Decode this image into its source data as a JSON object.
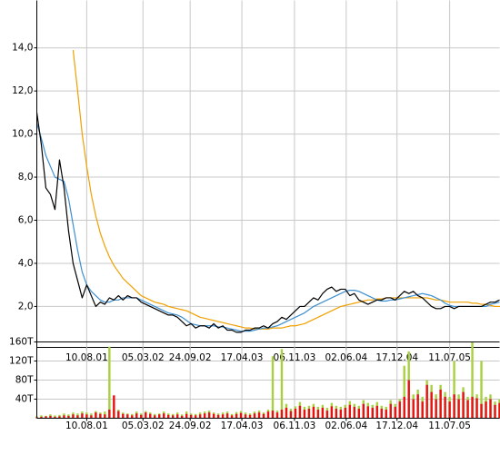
{
  "chart_data": [
    {
      "type": "line",
      "xlim": [
        0,
        102
      ],
      "xticks": [
        {
          "value": 11,
          "label": "10.08.01"
        },
        {
          "value": 23.4,
          "label": "05.03.02"
        },
        {
          "value": 33.8,
          "label": "24.09.02"
        },
        {
          "value": 45.2,
          "label": "17.04.03"
        },
        {
          "value": 56.8,
          "label": "06.11.03"
        },
        {
          "value": 68.2,
          "label": "02.06.04"
        },
        {
          "value": 79.4,
          "label": "17.12.04"
        },
        {
          "value": 91,
          "label": "11.07.05"
        }
      ],
      "ylim": [
        0.1,
        16.2
      ],
      "yticks": [
        {
          "value": 2,
          "label": "2,0"
        },
        {
          "value": 4,
          "label": "4,0"
        },
        {
          "value": 6,
          "label": "6,0"
        },
        {
          "value": 8,
          "label": "8,0"
        },
        {
          "value": 10,
          "label": "10,0"
        },
        {
          "value": 12,
          "label": "12,0"
        },
        {
          "value": 14,
          "label": "14,0"
        }
      ],
      "grid": true,
      "series": [
        {
          "color": "#f0a000",
          "values": [
            null,
            null,
            null,
            null,
            null,
            null,
            null,
            null,
            13.9,
            12,
            10,
            8.5,
            7.2,
            6.2,
            5.4,
            4.8,
            4.3,
            3.9,
            3.6,
            3.3,
            3.1,
            2.9,
            2.7,
            2.5,
            2.4,
            2.3,
            2.2,
            2.15,
            2.1,
            2.0,
            1.95,
            1.9,
            1.85,
            1.8,
            1.7,
            1.6,
            1.5,
            1.45,
            1.4,
            1.35,
            1.3,
            1.25,
            1.2,
            1.15,
            1.1,
            1.05,
            1.0,
            1.0,
            0.95,
            0.95,
            0.95,
            0.95,
            1.0,
            1.0,
            1.0,
            1.05,
            1.1,
            1.1,
            1.15,
            1.2,
            1.3,
            1.4,
            1.5,
            1.6,
            1.7,
            1.8,
            1.9,
            2.0,
            2.05,
            2.1,
            2.15,
            2.2,
            2.25,
            2.3,
            2.3,
            2.35,
            2.35,
            2.4,
            2.4,
            2.4,
            2.4,
            2.4,
            2.4,
            2.4,
            2.4,
            2.4,
            2.4,
            2.35,
            2.3,
            2.3,
            2.25,
            2.2,
            2.2,
            2.2,
            2.2,
            2.2,
            2.15,
            2.15,
            2.1,
            2.1,
            2.05,
            2.0,
            2.0,
            2.0
          ]
        },
        {
          "color": "#3d8fd0",
          "values": [
            10.5,
            9.8,
            9.0,
            8.5,
            8.0,
            7.9,
            7.8,
            7.0,
            5.8,
            4.6,
            3.6,
            3.0,
            2.7,
            2.5,
            2.3,
            2.2,
            2.2,
            2.3,
            2.3,
            2.4,
            2.4,
            2.4,
            2.4,
            2.3,
            2.2,
            2.1,
            2.0,
            1.9,
            1.8,
            1.7,
            1.65,
            1.6,
            1.5,
            1.35,
            1.2,
            1.15,
            1.1,
            1.1,
            1.1,
            1.1,
            1.05,
            1.05,
            1.0,
            0.95,
            0.9,
            0.85,
            0.85,
            0.85,
            0.9,
            0.95,
            1.0,
            1.0,
            1.05,
            1.1,
            1.2,
            1.3,
            1.4,
            1.5,
            1.6,
            1.7,
            1.85,
            2.0,
            2.1,
            2.2,
            2.3,
            2.4,
            2.5,
            2.6,
            2.7,
            2.75,
            2.75,
            2.7,
            2.6,
            2.5,
            2.4,
            2.3,
            2.25,
            2.25,
            2.3,
            2.3,
            2.35,
            2.4,
            2.45,
            2.5,
            2.55,
            2.6,
            2.55,
            2.5,
            2.4,
            2.3,
            2.15,
            2.05,
            2.0,
            2.0,
            2.0,
            2.0,
            2.0,
            2.0,
            2.0,
            2.0,
            2.1,
            2.15,
            2.2
          ]
        },
        {
          "color": "#000000",
          "values": [
            11,
            9.5,
            7.5,
            7.2,
            6.5,
            8.8,
            7.5,
            5.5,
            4.0,
            3.2,
            2.4,
            3.0,
            2.5,
            2.0,
            2.2,
            2.1,
            2.4,
            2.3,
            2.5,
            2.3,
            2.5,
            2.4,
            2.4,
            2.2,
            2.1,
            2.0,
            1.9,
            1.8,
            1.7,
            1.6,
            1.6,
            1.5,
            1.3,
            1.1,
            1.2,
            1.0,
            1.1,
            1.1,
            1.0,
            1.2,
            1.0,
            1.1,
            0.9,
            0.9,
            0.8,
            0.8,
            0.9,
            0.9,
            1.0,
            1.0,
            1.1,
            1.0,
            1.2,
            1.3,
            1.5,
            1.4,
            1.6,
            1.8,
            2.0,
            2.0,
            2.2,
            2.4,
            2.3,
            2.6,
            2.8,
            2.9,
            2.7,
            2.8,
            2.8,
            2.5,
            2.6,
            2.3,
            2.2,
            2.1,
            2.2,
            2.3,
            2.3,
            2.4,
            2.4,
            2.3,
            2.5,
            2.7,
            2.6,
            2.7,
            2.5,
            2.4,
            2.2,
            2.0,
            1.9,
            1.9,
            2.0,
            2.0,
            1.9,
            2.0,
            2.0,
            2.0,
            2.0,
            2.0,
            2.0,
            2.1,
            2.2,
            2.2,
            2.3
          ]
        }
      ]
    },
    {
      "type": "bar",
      "xlim": [
        0,
        102
      ],
      "xticks": [
        {
          "value": 11,
          "label": "10.08.01"
        },
        {
          "value": 23.4,
          "label": "05.03.02"
        },
        {
          "value": 33.8,
          "label": "24.09.02"
        },
        {
          "value": 45.2,
          "label": "17.04.03"
        },
        {
          "value": 56.8,
          "label": "06.11.03"
        },
        {
          "value": 68.2,
          "label": "02.06.04"
        },
        {
          "value": 79.4,
          "label": "17.12.04"
        },
        {
          "value": 91,
          "label": "11.07.05"
        }
      ],
      "ylim": [
        0,
        160
      ],
      "yticks": [
        {
          "value": 40,
          "label": "40T"
        },
        {
          "value": 80,
          "label": "80T"
        },
        {
          "value": 120,
          "label": "120T"
        },
        {
          "value": 160,
          "label": "160T"
        }
      ],
      "grid": true,
      "series": [
        {
          "color": "#a8d040",
          "values": [
            4,
            6,
            5,
            8,
            6,
            7,
            10,
            8,
            12,
            10,
            14,
            12,
            10,
            15,
            12,
            14,
            150,
            20,
            18,
            12,
            10,
            9,
            14,
            10,
            15,
            12,
            9,
            10,
            14,
            10,
            9,
            12,
            8,
            14,
            10,
            9,
            12,
            14,
            16,
            12,
            10,
            12,
            14,
            9,
            13,
            15,
            12,
            10,
            14,
            16,
            12,
            18,
            130,
            16,
            145,
            30,
            20,
            25,
            34,
            24,
            26,
            30,
            24,
            28,
            22,
            32,
            26,
            24,
            28,
            36,
            30,
            26,
            38,
            32,
            28,
            34,
            26,
            24,
            38,
            30,
            40,
            110,
            140,
            50,
            60,
            45,
            80,
            70,
            50,
            70,
            55,
            45,
            120,
            50,
            65,
            45,
            160,
            50,
            120,
            45,
            50,
            35,
            40
          ]
        },
        {
          "color": "#e81010",
          "values": [
            2,
            3,
            4,
            5,
            3,
            4,
            6,
            5,
            8,
            6,
            10,
            8,
            6,
            12,
            9,
            8,
            18,
            48,
            15,
            9,
            8,
            6,
            10,
            7,
            12,
            9,
            6,
            8,
            10,
            7,
            6,
            8,
            5,
            9,
            7,
            6,
            8,
            10,
            12,
            9,
            7,
            8,
            10,
            6,
            9,
            11,
            8,
            7,
            10,
            12,
            9,
            14,
            16,
            12,
            18,
            22,
            15,
            20,
            26,
            18,
            20,
            24,
            18,
            22,
            16,
            25,
            20,
            18,
            22,
            28,
            24,
            20,
            30,
            25,
            22,
            26,
            20,
            18,
            30,
            24,
            35,
            45,
            80,
            40,
            50,
            35,
            70,
            55,
            40,
            60,
            45,
            35,
            50,
            40,
            55,
            38,
            45,
            42,
            30,
            35,
            40,
            28,
            32
          ]
        }
      ]
    }
  ]
}
